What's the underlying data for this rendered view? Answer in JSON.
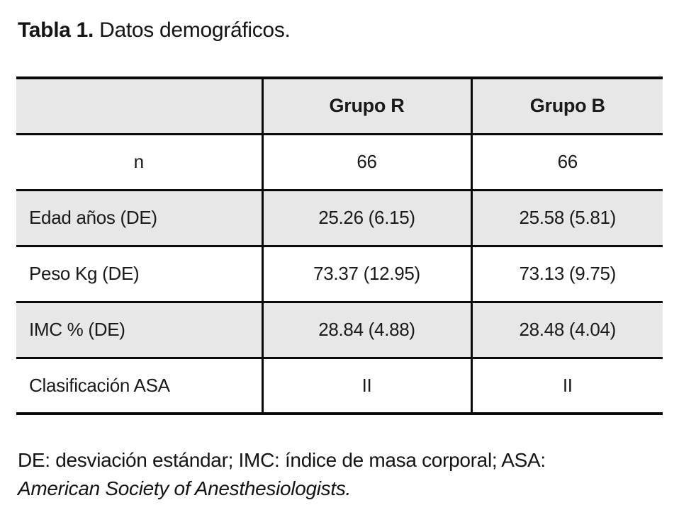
{
  "title": {
    "prefix": "Tabla 1.",
    "text": " Datos demográficos."
  },
  "table": {
    "columns": [
      "",
      "Grupo R",
      "Grupo B"
    ],
    "rows": [
      {
        "label": "n",
        "values": [
          "66",
          "66"
        ]
      },
      {
        "label": "Edad años (DE)",
        "values": [
          "25.26 (6.15)",
          "25.58 (5.81)"
        ]
      },
      {
        "label": "Peso Kg (DE)",
        "values": [
          "73.37 (12.95)",
          "73.13 (9.75)"
        ]
      },
      {
        "label": "IMC % (DE)",
        "values": [
          "28.84 (4.88)",
          "28.48 (4.04)"
        ]
      },
      {
        "label": "Clasificación ASA",
        "values": [
          "II",
          "II"
        ]
      }
    ]
  },
  "footnote": {
    "line1": "DE: desviación estándar; IMC: índice de masa corporal; ASA:",
    "line2": "American Society of Anesthesiologists."
  },
  "colors": {
    "row_shade": "#e7e7e7",
    "border": "#0a0a0a",
    "text": "#1a1a1a"
  }
}
